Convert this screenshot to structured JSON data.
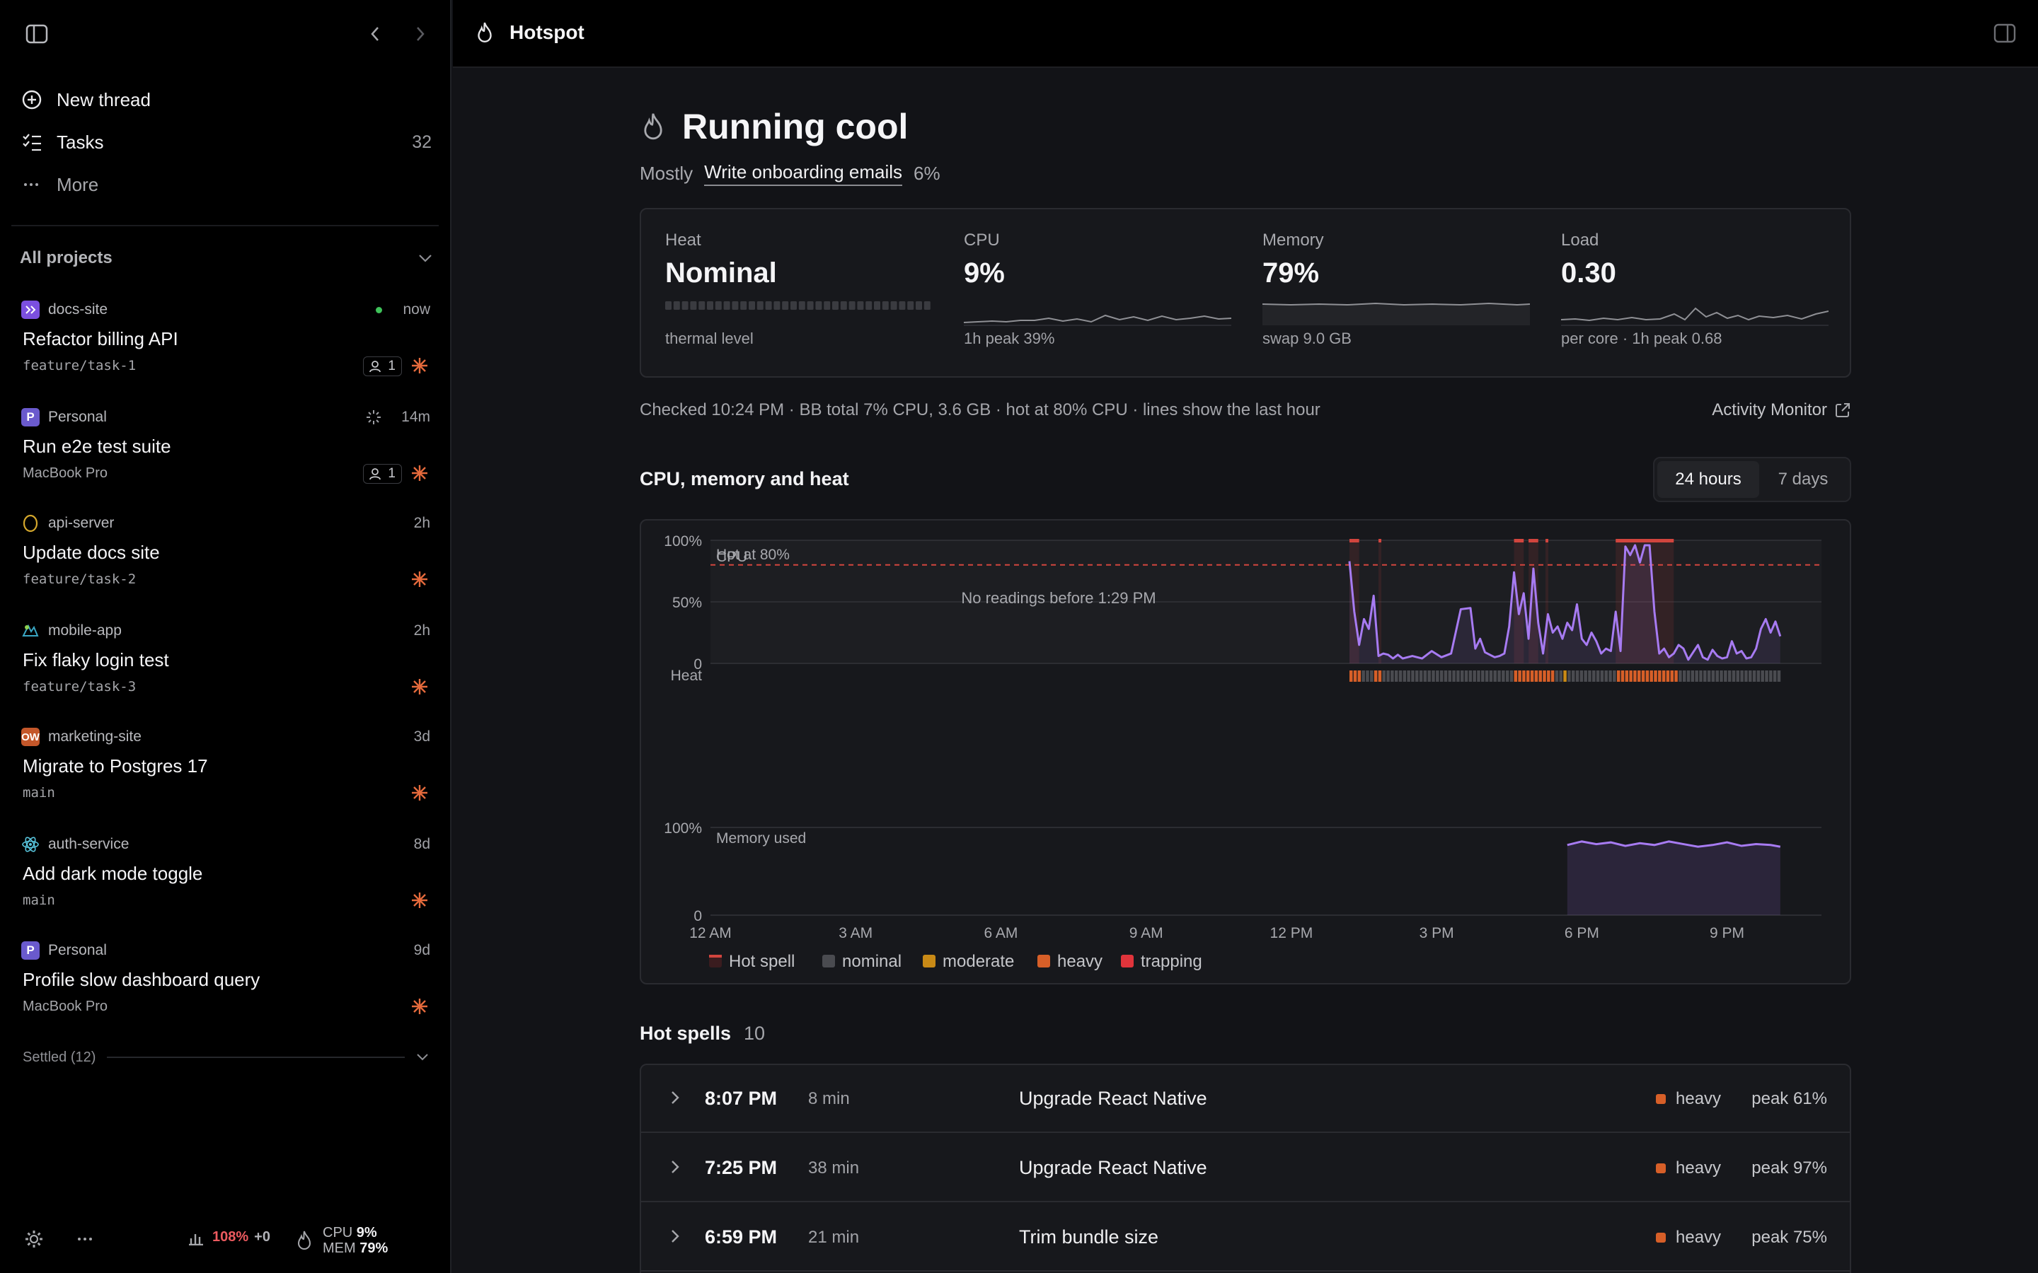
{
  "sidebar": {
    "nav": [
      {
        "label": "New thread",
        "icon": "plus-circle-icon"
      },
      {
        "label": "Tasks",
        "icon": "checklist-icon",
        "count": "32"
      },
      {
        "label": "More",
        "icon": "ellipsis-icon"
      }
    ],
    "projects_header": "All projects",
    "threads": [
      {
        "project": "docs-site",
        "time": "now",
        "title": "Refactor billing API",
        "branch": "feature/task-1",
        "collaborators": "1",
        "status": "online",
        "icon_color": "#7b4fe0"
      },
      {
        "project": "Personal",
        "project_initial": "P",
        "time": "14m",
        "title": "Run e2e test suite",
        "branch": "MacBook Pro",
        "collaborators": "1",
        "status": "running",
        "icon_color": "#6a5acd"
      },
      {
        "project": "api-server",
        "time": "2h",
        "title": "Update docs site",
        "branch": "feature/task-2",
        "icon_color": "#d4a72c"
      },
      {
        "project": "mobile-app",
        "time": "2h",
        "title": "Fix flaky login test",
        "branch": "feature/task-3",
        "icon_color": "#3aa7c4"
      },
      {
        "project": "marketing-site",
        "project_initial": "OW",
        "time": "3d",
        "title": "Migrate to Postgres 17",
        "branch": "main",
        "icon_color": "#c4572a"
      },
      {
        "project": "auth-service",
        "time": "8d",
        "title": "Add dark mode toggle",
        "branch": "main",
        "icon_color": "#58c4dc"
      },
      {
        "project": "Personal",
        "project_initial": "P",
        "time": "9d",
        "title": "Profile slow dashboard query",
        "branch": "MacBook Pro",
        "icon_color": "#6a5acd"
      }
    ],
    "settled_label": "Settled (12)",
    "footer": {
      "load": "108%",
      "load_delta": "+0",
      "cpu_label": "CPU",
      "cpu": "9%",
      "mem_label": "MEM",
      "mem": "79%"
    }
  },
  "topbar": {
    "title": "Hotspot"
  },
  "main": {
    "heading": "Running cool",
    "mostly_label": "Mostly",
    "task": "Write onboarding emails",
    "task_pct": "6%",
    "cards": [
      {
        "label": "Heat",
        "value": "Nominal",
        "foot": "thermal level"
      },
      {
        "label": "CPU",
        "value": "9%",
        "foot": "1h peak 39%"
      },
      {
        "label": "Memory",
        "value": "79%",
        "foot": "swap 9.0 GB"
      },
      {
        "label": "Load",
        "value": "0.30",
        "foot": "per core · 1h peak 0.68"
      }
    ],
    "checked": "Checked 10:24 PM · BB total 7% CPU, 3.6 GB · hot at 80% CPU · lines show the last hour",
    "activity_monitor": "Activity Monitor",
    "chart_title": "CPU, memory and heat",
    "range_options": [
      "24 hours",
      "7 days"
    ],
    "range_selected": "24 hours",
    "hot_spells_title": "Hot spells",
    "hot_spells_count": "10",
    "hot_spells": [
      {
        "time": "8:07 PM",
        "duration": "8 min",
        "task": "Upgrade React Native",
        "level": "heavy",
        "peak": "peak 61%"
      },
      {
        "time": "7:25 PM",
        "duration": "38 min",
        "task": "Upgrade React Native",
        "level": "heavy",
        "peak": "peak 97%"
      },
      {
        "time": "6:59 PM",
        "duration": "21 min",
        "task": "Trim bundle size",
        "level": "heavy",
        "peak": "peak 75%"
      }
    ]
  },
  "colors": {
    "accent_line": "#a77bf2",
    "hot_line": "#d2453e",
    "nominal": "#4a4b50",
    "moderate": "#c98a16",
    "heavy": "#d75f28",
    "trapping": "#e0343b"
  },
  "chart_data": [
    {
      "type": "line",
      "title": "",
      "panel_label": "CPU",
      "ylabel": "",
      "yticks": [
        "100%",
        "50%",
        "0"
      ],
      "ylim": [
        0,
        100
      ],
      "threshold": {
        "label": "Hot at 80%",
        "value": 80
      },
      "annotation": "No readings before 1:29 PM",
      "xticks": [
        "12 AM",
        "3 AM",
        "6 AM",
        "9 AM",
        "12 PM",
        "3 PM",
        "6 PM",
        "9 PM"
      ],
      "series": [
        {
          "x": [
            13.5,
            13.6,
            13.7,
            13.8,
            13.9,
            14.0,
            14.1,
            14.2,
            14.3,
            14.4,
            14.5,
            14.6,
            14.8,
            15.0,
            15.2,
            15.4,
            15.6,
            15.8,
            16.0,
            16.1,
            16.2,
            16.3,
            16.4,
            16.5,
            16.6,
            16.7,
            16.8,
            16.9,
            17.0,
            17.1,
            17.2,
            17.3,
            17.4,
            17.5,
            17.6,
            17.7,
            17.8,
            17.9,
            18.0,
            18.1,
            18.2,
            18.3,
            18.4,
            18.5,
            18.6,
            18.7,
            18.8,
            18.9,
            19.0,
            19.1,
            19.2,
            19.3,
            19.4,
            19.5,
            19.6,
            19.7,
            19.8,
            19.9,
            20.0,
            20.1,
            20.2,
            20.3,
            20.4,
            20.5,
            20.6,
            20.7,
            20.8,
            20.9,
            21.0,
            21.1,
            21.2,
            21.3,
            21.4,
            21.5,
            21.6,
            21.7,
            21.8,
            21.9,
            22.0,
            22.1,
            22.2,
            22.3,
            22.4
          ],
          "values": [
            83,
            42,
            15,
            36,
            28,
            55,
            6,
            8,
            7,
            4,
            7,
            4,
            6,
            4,
            10,
            5,
            8,
            44,
            45,
            12,
            20,
            9,
            7,
            5,
            6,
            8,
            30,
            74,
            40,
            57,
            20,
            77,
            33,
            8,
            40,
            25,
            30,
            20,
            33,
            27,
            48,
            20,
            15,
            25,
            18,
            8,
            12,
            10,
            42,
            10,
            95,
            88,
            96,
            82,
            96,
            96,
            42,
            8,
            12,
            5,
            8,
            15,
            12,
            3,
            9,
            15,
            5,
            3,
            11,
            6,
            4,
            5,
            18,
            8,
            10,
            4,
            5,
            12,
            28,
            36,
            25,
            34,
            22
          ]
        }
      ]
    },
    {
      "type": "heatmap",
      "panel_label": "Heat",
      "legend": [
        "Hot spell",
        "nominal",
        "moderate",
        "heavy",
        "trapping"
      ]
    },
    {
      "type": "area",
      "panel_label": "Memory used",
      "yticks": [
        "100%",
        "0"
      ],
      "ylim": [
        0,
        100
      ],
      "series": [
        {
          "x": [
            18.0,
            18.3,
            18.6,
            18.9,
            19.2,
            19.5,
            19.8,
            20.1,
            20.4,
            20.7,
            21.0,
            21.3,
            21.6,
            21.9,
            22.2,
            22.4
          ],
          "values": [
            80,
            84,
            81,
            83,
            79,
            82,
            80,
            84,
            81,
            78,
            80,
            83,
            79,
            81,
            80,
            78
          ]
        }
      ]
    }
  ]
}
